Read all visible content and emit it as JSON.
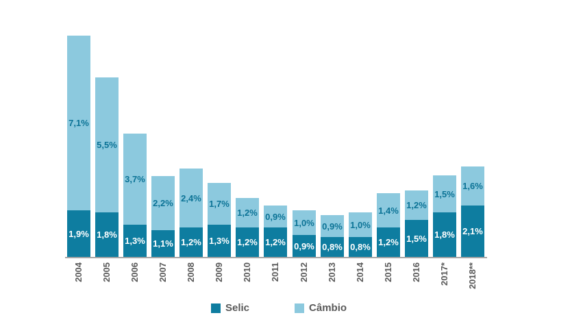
{
  "chart_data": {
    "type": "bar",
    "stacked": true,
    "title": "",
    "xlabel": "",
    "ylabel": "",
    "ylim": [
      0,
      9.5
    ],
    "grid": false,
    "legend_position": "bottom",
    "value_format": "percent-comma-decimal",
    "axis_line_color": "#a6a6a6",
    "tick_label_color": "#595959",
    "categories": [
      "2004",
      "2005",
      "2006",
      "2007",
      "2008",
      "2009",
      "2010",
      "2011",
      "2012",
      "2013",
      "2014",
      "2015",
      "2016",
      "2017*",
      "2018**"
    ],
    "series": [
      {
        "name": "Selic",
        "color": "#0e7da0",
        "label_color": "#ffffff",
        "values": [
          1.9,
          1.8,
          1.3,
          1.1,
          1.2,
          1.3,
          1.2,
          1.2,
          0.9,
          0.8,
          0.8,
          1.2,
          1.5,
          1.8,
          2.1
        ],
        "labels": [
          "1,9%",
          "1,8%",
          "1,3%",
          "1,1%",
          "1,2%",
          "1,3%",
          "1,2%",
          "1,2%",
          "0,9%",
          "0,8%",
          "0,8%",
          "1,2%",
          "1,5%",
          "1,8%",
          "2,1%"
        ]
      },
      {
        "name": "Câmbio",
        "color": "#8cc9de",
        "label_color": "#0c7396",
        "values": [
          7.1,
          5.5,
          3.7,
          2.2,
          2.4,
          1.7,
          1.2,
          0.9,
          1.0,
          0.9,
          1.0,
          1.4,
          1.2,
          1.5,
          1.6
        ],
        "labels": [
          "7,1%",
          "5,5%",
          "3,7%",
          "2,2%",
          "2,4%",
          "1,7%",
          "1,2%",
          "0,9%",
          "1,0%",
          "0,9%",
          "1,0%",
          "1,4%",
          "1,2%",
          "1,5%",
          "1,6%"
        ]
      }
    ]
  },
  "legend": {
    "items": [
      {
        "label": "Selic",
        "color": "#0e7da0"
      },
      {
        "label": "Câmbio",
        "color": "#8cc9de"
      }
    ]
  }
}
